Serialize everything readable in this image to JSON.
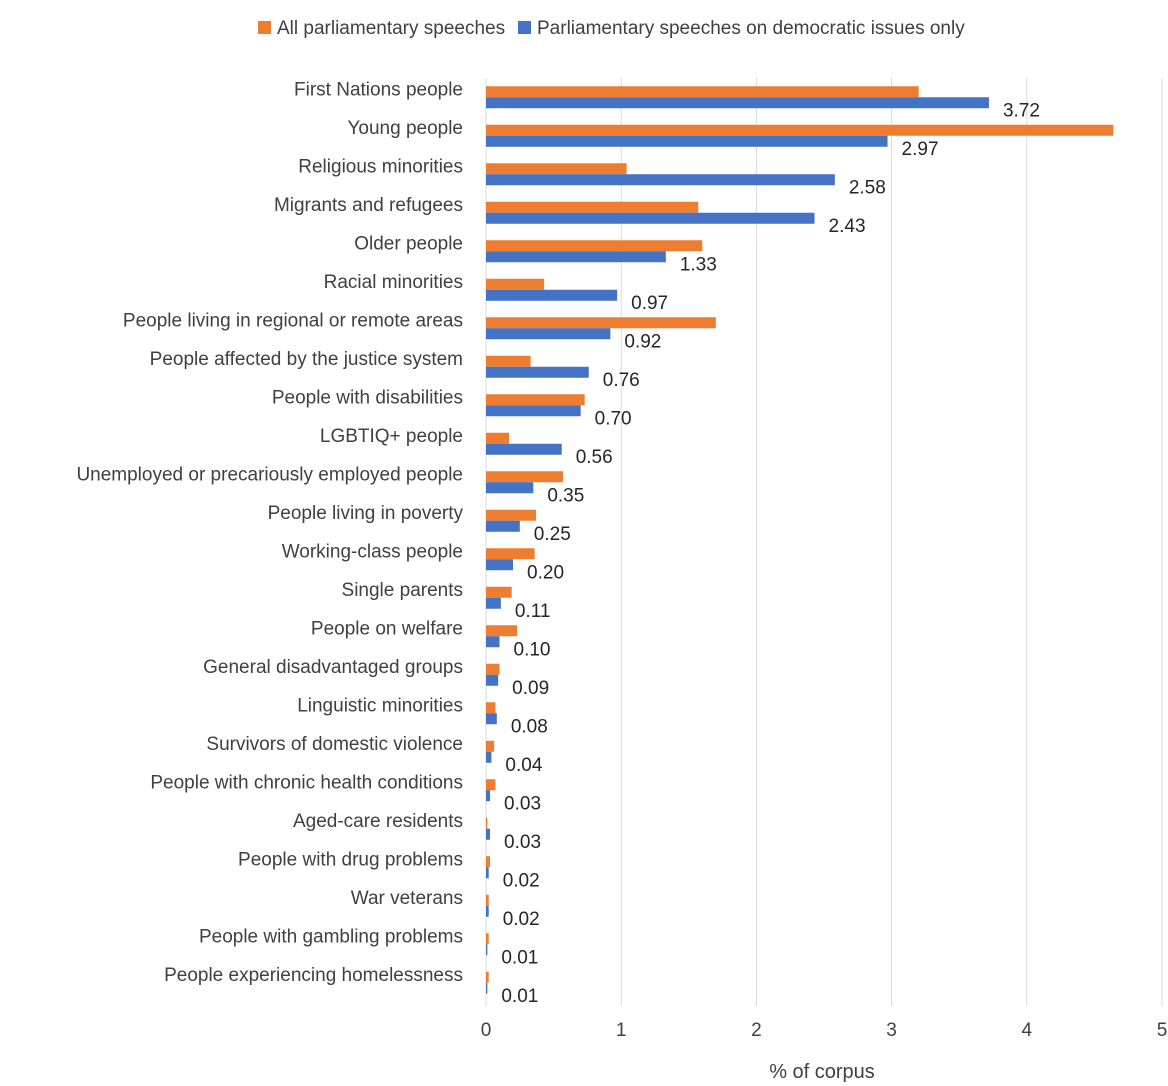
{
  "chart_data": {
    "type": "bar",
    "orientation": "horizontal",
    "title": "",
    "xlabel": "% of corpus",
    "ylabel": "",
    "xlim": [
      0,
      5
    ],
    "xticks": [
      0,
      1,
      2,
      3,
      4,
      5
    ],
    "grid": "vertical",
    "legend_position": "top",
    "categories": [
      "First Nations people",
      "Young people",
      "Religious minorities",
      "Migrants and refugees",
      "Older people",
      "Racial minorities",
      "People living in regional or remote areas",
      "People affected by the justice system",
      "People with disabilities",
      "LGBTIQ+ people",
      "Unemployed or precariously employed people",
      "People living in poverty",
      "Working-class people",
      "Single parents",
      "People on welfare",
      "General disadvantaged groups",
      "Linguistic minorities",
      "Survivors of domestic violence",
      "People with chronic health conditions",
      "Aged-care residents",
      "People with drug problems",
      "War veterans",
      "People with gambling problems",
      "People experiencing homelessness"
    ],
    "series": [
      {
        "name": "All parliamentary speeches",
        "color": "#ED7D31",
        "values": [
          3.2,
          4.64,
          1.04,
          1.57,
          1.6,
          0.43,
          1.7,
          0.33,
          0.73,
          0.17,
          0.57,
          0.37,
          0.36,
          0.19,
          0.23,
          0.1,
          0.07,
          0.06,
          0.07,
          0.01,
          0.03,
          0.02,
          0.02,
          0.02
        ],
        "show_labels": false
      },
      {
        "name": "Parliamentary speeches on democratic issues only",
        "color": "#4472C4",
        "values": [
          3.72,
          2.97,
          2.58,
          2.43,
          1.33,
          0.97,
          0.92,
          0.76,
          0.7,
          0.56,
          0.35,
          0.25,
          0.2,
          0.11,
          0.1,
          0.09,
          0.08,
          0.04,
          0.03,
          0.03,
          0.02,
          0.02,
          0.01,
          0.01
        ],
        "labels": [
          "3.72",
          "2.97",
          "2.58",
          "2.43",
          "1.33",
          "0.97",
          "0.92",
          "0.76",
          "0.70",
          "0.56",
          "0.35",
          "0.25",
          "0.20",
          "0.11",
          "0.10",
          "0.09",
          "0.08",
          "0.04",
          "0.03",
          "0.03",
          "0.02",
          "0.02",
          "0.01",
          "0.01"
        ],
        "show_labels": true
      }
    ]
  }
}
